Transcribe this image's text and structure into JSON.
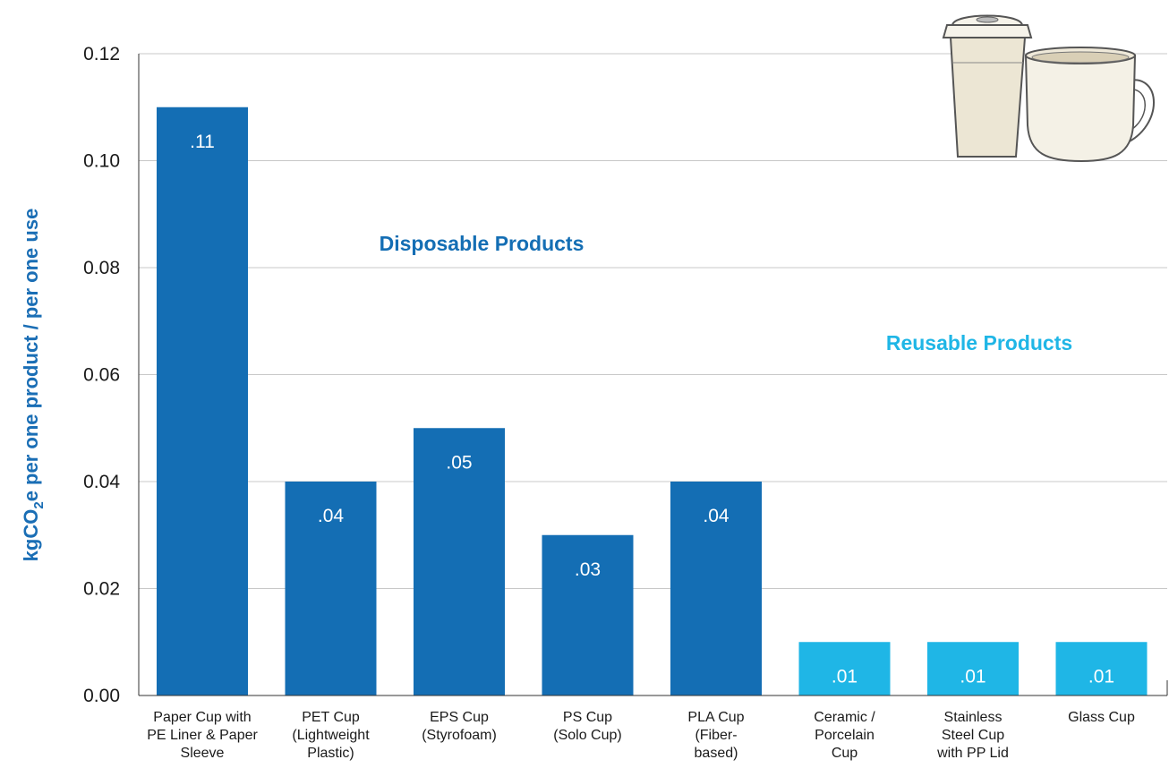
{
  "chart_data": {
    "type": "bar",
    "categories": [
      "Paper Cup with PE Liner & Paper Sleeve",
      "PET Cup (Lightweight Plastic)",
      "EPS Cup (Styrofoam)",
      "PS Cup (Solo Cup)",
      "PLA Cup (Fiber-based)",
      "Ceramic / Porcelain Cup",
      "Stainless Steel Cup with PP Lid",
      "Glass Cup"
    ],
    "category_lines": [
      [
        "Paper Cup with",
        "PE Liner & Paper",
        "Sleeve"
      ],
      [
        "PET Cup",
        "(Lightweight",
        "Plastic)"
      ],
      [
        "EPS Cup",
        "(Styrofoam)"
      ],
      [
        "PS Cup",
        "(Solo Cup)"
      ],
      [
        "PLA Cup",
        "(Fiber-",
        "based)"
      ],
      [
        "Ceramic /",
        "Porcelain",
        "Cup"
      ],
      [
        "Stainless",
        "Steel Cup",
        "with PP Lid"
      ],
      [
        "Glass Cup"
      ]
    ],
    "values": [
      0.11,
      0.04,
      0.05,
      0.03,
      0.04,
      0.01,
      0.01,
      0.01
    ],
    "data_labels": [
      ".11",
      ".04",
      ".05",
      ".03",
      ".04",
      ".01",
      ".01",
      ".01"
    ],
    "groups": [
      "disposable",
      "disposable",
      "disposable",
      "disposable",
      "disposable",
      "reusable",
      "reusable",
      "reusable"
    ],
    "group_labels": {
      "disposable": "Disposable Products",
      "reusable": "Reusable Products"
    },
    "colors": {
      "disposable": "#146eb4",
      "reusable": "#1fb6e6",
      "disposable_text": "#146eb4",
      "reusable_text": "#1fb6e6",
      "ylabel": "#1a6eb5"
    },
    "ylabel_parts": [
      "kgCO",
      "2",
      "e per one product / per one use"
    ],
    "yticks": [
      "0.00",
      "0.02",
      "0.04",
      "0.06",
      "0.08",
      "0.10",
      "0.12"
    ],
    "ylim": [
      0,
      0.12
    ],
    "grid": true,
    "xlabel": "",
    "title": ""
  }
}
